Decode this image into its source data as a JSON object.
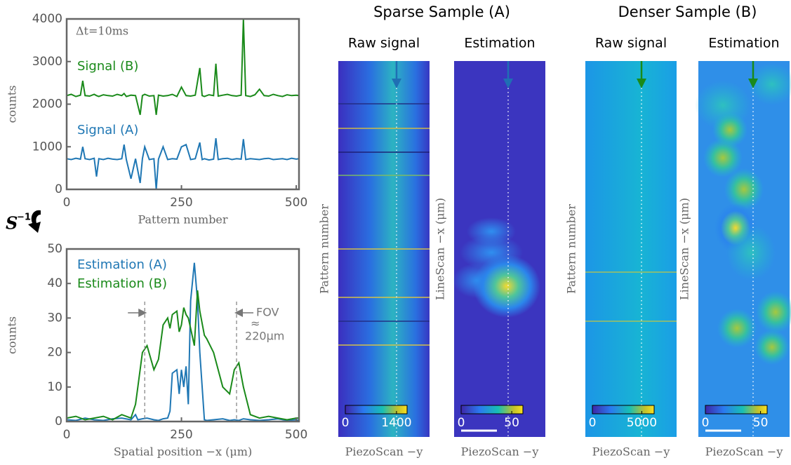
{
  "chart_data": [
    {
      "type": "line",
      "xlabel": "Pattern number",
      "ylabel": "counts",
      "annotation": "Δt=10ms",
      "x": [
        0,
        10,
        20,
        30,
        35,
        40,
        50,
        60,
        65,
        70,
        80,
        90,
        100,
        110,
        120,
        125,
        130,
        140,
        150,
        160,
        165,
        170,
        180,
        190,
        195,
        200,
        210,
        220,
        230,
        240,
        250,
        260,
        270,
        280,
        290,
        295,
        300,
        310,
        320,
        325,
        330,
        340,
        350,
        360,
        370,
        380,
        385,
        390,
        400,
        410,
        420,
        430,
        440,
        450,
        460,
        470,
        480,
        490,
        500,
        506
      ],
      "xlim": [
        0,
        506
      ],
      "ylim": [
        0,
        4000
      ],
      "xticks": [
        0,
        250,
        500
      ],
      "yticks": [
        0,
        1000,
        2000,
        3000,
        4000
      ],
      "series": [
        {
          "name": "Signal (B)",
          "color": "#1a8a1a",
          "values": [
            2200,
            2230,
            2180,
            2210,
            2550,
            2200,
            2190,
            2230,
            2200,
            2180,
            2220,
            2200,
            2190,
            2230,
            2200,
            2250,
            2180,
            2210,
            2200,
            1750,
            2200,
            2230,
            2190,
            2200,
            1750,
            2210,
            2190,
            2200,
            2230,
            2180,
            2400,
            2200,
            2190,
            2210,
            2850,
            2200,
            2180,
            2220,
            2200,
            2950,
            2190,
            2210,
            2230,
            2200,
            2190,
            2210,
            4000,
            2200,
            2180,
            2220,
            2350,
            2200,
            2190,
            2230,
            2200,
            2180,
            2220,
            2200,
            2210,
            2200
          ]
        },
        {
          "name": "Signal (A)",
          "color": "#1f77b4",
          "values": [
            720,
            700,
            730,
            710,
            1000,
            720,
            700,
            730,
            300,
            720,
            700,
            730,
            710,
            700,
            720,
            1050,
            700,
            250,
            720,
            150,
            720,
            1000,
            700,
            720,
            0,
            710,
            1000,
            700,
            720,
            710,
            1000,
            1050,
            700,
            720,
            1100,
            700,
            720,
            690,
            710,
            1200,
            700,
            720,
            730,
            700,
            720,
            710,
            1180,
            700,
            720,
            710,
            700,
            720,
            730,
            700,
            710,
            720,
            700,
            730,
            710,
            720
          ]
        }
      ]
    },
    {
      "type": "line",
      "xlabel": "Spatial position −x (μm)",
      "ylabel": "counts",
      "x": [
        0,
        20,
        40,
        60,
        80,
        100,
        120,
        140,
        150,
        155,
        165,
        175,
        190,
        200,
        210,
        220,
        225,
        230,
        240,
        245,
        250,
        255,
        260,
        265,
        270,
        278,
        285,
        290,
        300,
        305,
        320,
        340,
        355,
        365,
        375,
        385,
        400,
        420,
        440,
        460,
        480,
        500,
        506
      ],
      "xlim": [
        0,
        506
      ],
      "ylim": [
        0,
        50
      ],
      "xticks": [
        0,
        250,
        500
      ],
      "yticks": [
        0,
        10,
        20,
        30,
        40,
        50
      ],
      "series": [
        {
          "name": "Estimation (A)",
          "color": "#1f77b4",
          "values": [
            0.5,
            0.3,
            1,
            0.5,
            0.3,
            0.8,
            1,
            0.5,
            2,
            0.5,
            0.8,
            1,
            0.5,
            0.3,
            0.8,
            1,
            3,
            14,
            15,
            8,
            15,
            10,
            16,
            5,
            35,
            46,
            35,
            20,
            0.5,
            0.3,
            0.5,
            0.8,
            0.3,
            0.5,
            0.3,
            0.8,
            0.5,
            0.3,
            0.5,
            0.8,
            0.3,
            0.5,
            0.3
          ]
        },
        {
          "name": "Estimation (B)",
          "color": "#1a8a1a",
          "values": [
            1,
            1.5,
            0.5,
            1,
            1.5,
            0.5,
            2,
            1,
            5,
            10,
            20,
            22,
            15,
            18,
            28,
            30,
            27,
            31,
            32,
            26,
            28,
            33,
            31,
            30,
            27,
            22,
            38,
            32,
            25,
            24,
            20,
            10,
            8,
            15,
            17,
            10,
            2,
            1,
            1.5,
            1,
            0.5,
            1,
            1
          ]
        }
      ],
      "fov": {
        "lines": [
          170,
          370
        ],
        "label": [
          "FOV",
          "≈",
          "220μm"
        ]
      }
    }
  ],
  "operator": {
    "base": "S",
    "sup": "−1"
  },
  "sections": [
    {
      "title": "Sparse Sample (A)",
      "panels": [
        {
          "title": "Raw signal",
          "ylabel": "Pattern number",
          "xlabel": "PiezoScan −y",
          "colorbar": {
            "clim": [
              0,
              1690
            ],
            "ticks": [
              0,
              1400
            ]
          }
        },
        {
          "title": "Estimation",
          "ylabel": "LineScan −x (μm)",
          "xlabel": "PiezoScan −y",
          "colorbar": {
            "clim": [
              0,
              61
            ],
            "ticks": [
              0,
              50
            ]
          }
        }
      ]
    },
    {
      "title": "Denser Sample (B)",
      "panels": [
        {
          "title": "Raw signal",
          "ylabel": "Pattern number",
          "xlabel": "PiezoScan −y",
          "colorbar": {
            "clim": [
              0,
              6250
            ],
            "ticks": [
              0,
              5000
            ]
          }
        },
        {
          "title": "Estimation",
          "ylabel": "LineScan −x (μm)",
          "xlabel": "PiezoScan −y",
          "colorbar": {
            "clim": [
              0,
              56
            ],
            "ticks": [
              0,
              50
            ]
          }
        }
      ]
    }
  ]
}
